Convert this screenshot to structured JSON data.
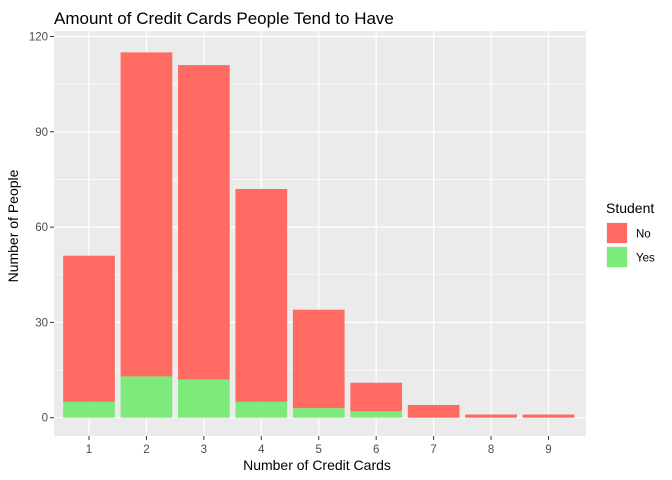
{
  "chart_data": {
    "type": "bar",
    "stacked": true,
    "title": "Amount of Credit Cards People Tend to Have",
    "xlabel": "Number of Credit Cards",
    "ylabel": "Number of People",
    "categories": [
      "1",
      "2",
      "3",
      "4",
      "5",
      "6",
      "7",
      "8",
      "9"
    ],
    "ylim": [
      0,
      120
    ],
    "yticks": [
      "0",
      "30",
      "60",
      "90",
      "120"
    ],
    "series": [
      {
        "name": "Yes",
        "color": "#7CEB7C",
        "values": [
          5,
          13,
          12,
          5,
          3,
          2,
          0,
          0,
          0
        ]
      },
      {
        "name": "No",
        "color": "#FF6A62",
        "values": [
          46,
          102,
          99,
          67,
          31,
          9,
          4,
          1,
          1
        ]
      }
    ],
    "legend": {
      "title": "Student",
      "position": "right",
      "entries": [
        "No",
        "Yes"
      ]
    },
    "grid": true,
    "panel_background": "#EBEBEB",
    "grid_color": "#FFFFFF"
  }
}
